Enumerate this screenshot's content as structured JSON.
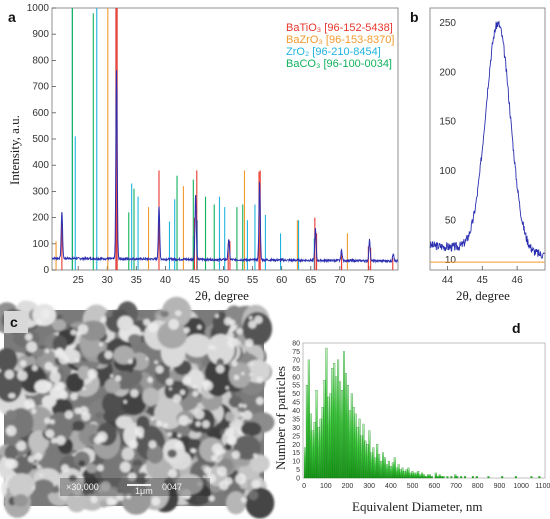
{
  "chart_data": [
    {
      "panel": "a",
      "type": "line",
      "xlabel": "2θ, degree",
      "ylabel": "Intensity, a.u.",
      "xlim": [
        20.5,
        80
      ],
      "ylim": [
        0,
        1000
      ],
      "xticks": [
        25,
        30,
        35,
        40,
        45,
        50,
        55,
        60,
        65,
        70,
        75
      ],
      "yticks": [
        0,
        100,
        200,
        300,
        400,
        500,
        600,
        700,
        800,
        900,
        1000
      ],
      "legend_position": "top-right",
      "legend": [
        {
          "label": "BaTiO₃ [96-152-5438]",
          "color": "#e8382f"
        },
        {
          "label": "BaZrO₃ [96-153-8370]",
          "color": "#f39a2f"
        },
        {
          "label": "ZrO₂ [96-210-8454]",
          "color": "#1fb4e0"
        },
        {
          "label": "BaCO₃ [96-100-0034]",
          "color": "#12b15c"
        }
      ],
      "measured_peaks": [
        [
          22.2,
          180
        ],
        [
          31.6,
          720
        ],
        [
          38.9,
          200
        ],
        [
          45.2,
          250
        ],
        [
          50.9,
          80
        ],
        [
          56.2,
          300
        ],
        [
          65.8,
          120
        ],
        [
          70.3,
          40
        ],
        [
          75.1,
          80
        ],
        [
          79.2,
          30
        ]
      ],
      "reference_series": [
        {
          "name": "BaTiO₃",
          "color": "#e8382f",
          "x": [
            22.2,
            31.5,
            31.7,
            38.9,
            45.0,
            45.4,
            50.8,
            51.1,
            56.1,
            56.3,
            65.7,
            66.0,
            70.3,
            74.9,
            75.3,
            79.1
          ],
          "y": [
            180,
            1000,
            1000,
            380,
            200,
            380,
            100,
            110,
            375,
            380,
            200,
            140,
            60,
            90,
            85,
            45
          ]
        },
        {
          "name": "BaZrO₃",
          "color": "#f39a2f",
          "x": [
            21.2,
            30.1,
            37.1,
            43.1,
            53.6,
            62.7,
            71.3
          ],
          "y": [
            110,
            1000,
            240,
            320,
            380,
            190,
            140
          ]
        },
        {
          "name": "ZrO₂",
          "color": "#1fb4e0",
          "x": [
            24.0,
            24.5,
            28.2,
            31.5,
            34.2,
            35.3,
            40.7,
            41.6,
            44.8,
            45.5,
            49.3,
            50.2,
            54.1,
            55.4,
            57.2,
            59.8,
            62.9,
            65.6
          ],
          "y": [
            1000,
            510,
            1000,
            1000,
            330,
            280,
            185,
            270,
            130,
            190,
            280,
            240,
            190,
            250,
            210,
            140,
            190,
            120
          ]
        },
        {
          "name": "BaCO₃",
          "color": "#12b15c",
          "x": [
            24.0,
            27.6,
            33.7,
            34.6,
            42.0,
            44.8,
            46.9,
            48.4,
            52.3,
            53.3
          ],
          "y": [
            1000,
            980,
            220,
            310,
            360,
            345,
            280,
            250,
            240,
            250
          ]
        }
      ]
    },
    {
      "panel": "b",
      "type": "line",
      "xlabel": "2θ, degree",
      "xlim": [
        43.5,
        46.8
      ],
      "ylim": [
        0,
        265
      ],
      "xticks": [
        44,
        45,
        46
      ],
      "ytick_labels": [
        "10",
        "50",
        "100",
        "150",
        "200",
        "250"
      ],
      "ytick_values": [
        10,
        50,
        100,
        150,
        200,
        250
      ],
      "peak": {
        "center": 45.45,
        "height": 255,
        "baseline": 25,
        "width": 0.5
      },
      "reference_line": {
        "y": 8,
        "color": "#f39a2f"
      }
    },
    {
      "panel": "d",
      "type": "bar",
      "xlabel": "Equivalent Diameter, nm",
      "ylabel": "Number of particles",
      "xlim": [
        -5,
        1110
      ],
      "ylim": [
        0,
        80
      ],
      "xticks": [
        0,
        100,
        200,
        300,
        400,
        500,
        600,
        700,
        800,
        900,
        1000,
        1100
      ],
      "yticks": [
        0,
        5,
        10,
        15,
        20,
        25,
        30,
        35,
        40,
        45,
        50,
        55,
        60,
        65,
        70,
        75,
        80
      ],
      "bin_width": 18,
      "bin_start": 0,
      "values": [
        18,
        55,
        70,
        38,
        28,
        33,
        52,
        30,
        35,
        42,
        58,
        77,
        48,
        50,
        65,
        68,
        60,
        70,
        57,
        52,
        75,
        62,
        55,
        40,
        50,
        42,
        38,
        30,
        35,
        25,
        32,
        22,
        20,
        28,
        15,
        18,
        12,
        20,
        14,
        10,
        15,
        12,
        8,
        10,
        7,
        9,
        12,
        6,
        8,
        5,
        6,
        4,
        5,
        6,
        3,
        4,
        3,
        3,
        4,
        2,
        3,
        2,
        1,
        2,
        2,
        1,
        0,
        3,
        1,
        2,
        1,
        1,
        0,
        1,
        0,
        1,
        0,
        2,
        1,
        0,
        1,
        0,
        1,
        0,
        0,
        0,
        1,
        0,
        1,
        0,
        0,
        0,
        0,
        0,
        1,
        0,
        0,
        0,
        0,
        0,
        0,
        1,
        0,
        0,
        0,
        0,
        0,
        0,
        1,
        0,
        0,
        0,
        0,
        0,
        0,
        0,
        1,
        0,
        0,
        0,
        1,
        0
      ]
    }
  ],
  "panels": {
    "a_letter": "a",
    "b_letter": "b",
    "c_letter": "c",
    "d_letter": "d",
    "a_xlabel": "2θ, degree",
    "a_ylabel": "Intensity, a.u.",
    "b_xlabel": "2θ, degree",
    "d_xlabel": "Equivalent Diameter, nm",
    "d_ylabel": "Number of particles",
    "sem_text_left": "×30,000",
    "sem_text_mid": "1μm",
    "sem_text_right": "0047"
  },
  "colors": {
    "measured": "#2b2fb0",
    "ticks": "#333333",
    "bars_top": "#6de26d",
    "bars_bottom": "#13a313",
    "sem_bg": "#8c8c8c"
  }
}
